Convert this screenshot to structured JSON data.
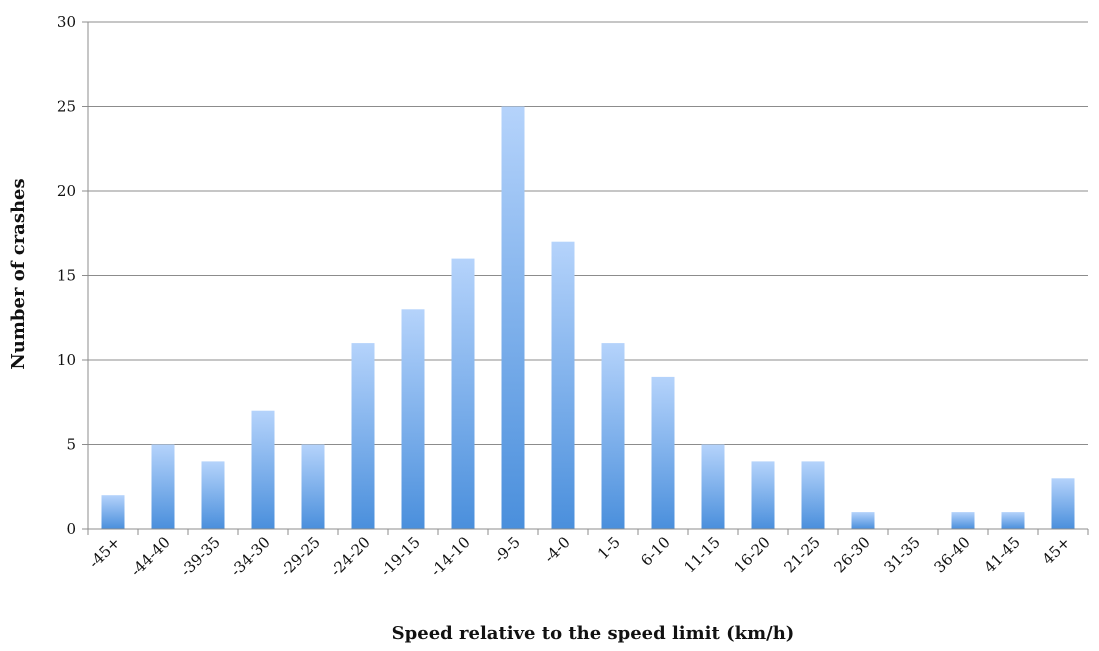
{
  "chart_data": {
    "type": "bar",
    "categories": [
      "-45+",
      "-44-40",
      "-39-35",
      "-34-30",
      "-29-25",
      "-24-20",
      "-19-15",
      "-14-10",
      "-9-5",
      "-4-0",
      "1-5",
      "6-10",
      "11-15",
      "16-20",
      "21-25",
      "26-30",
      "31-35",
      "36-40",
      "41-45",
      "45+"
    ],
    "series": [
      {
        "values": [
          2,
          5,
          4,
          7,
          5,
          11,
          13,
          16,
          25,
          17,
          11,
          9,
          5,
          4,
          4,
          1,
          0,
          1,
          1,
          3
        ]
      }
    ],
    "xlabel": "Speed relative to the speed limit (km/h)",
    "ylabel": "Number of crashes",
    "ylim": [
      0,
      30
    ],
    "yticks": [
      0,
      5,
      10,
      15,
      20,
      25,
      30
    ],
    "grid": true,
    "legend": "none",
    "colors": {
      "bar_top": "#b5d3fb",
      "bar_bottom": "#4a8fdc",
      "grid": "#8c8c8c"
    }
  }
}
